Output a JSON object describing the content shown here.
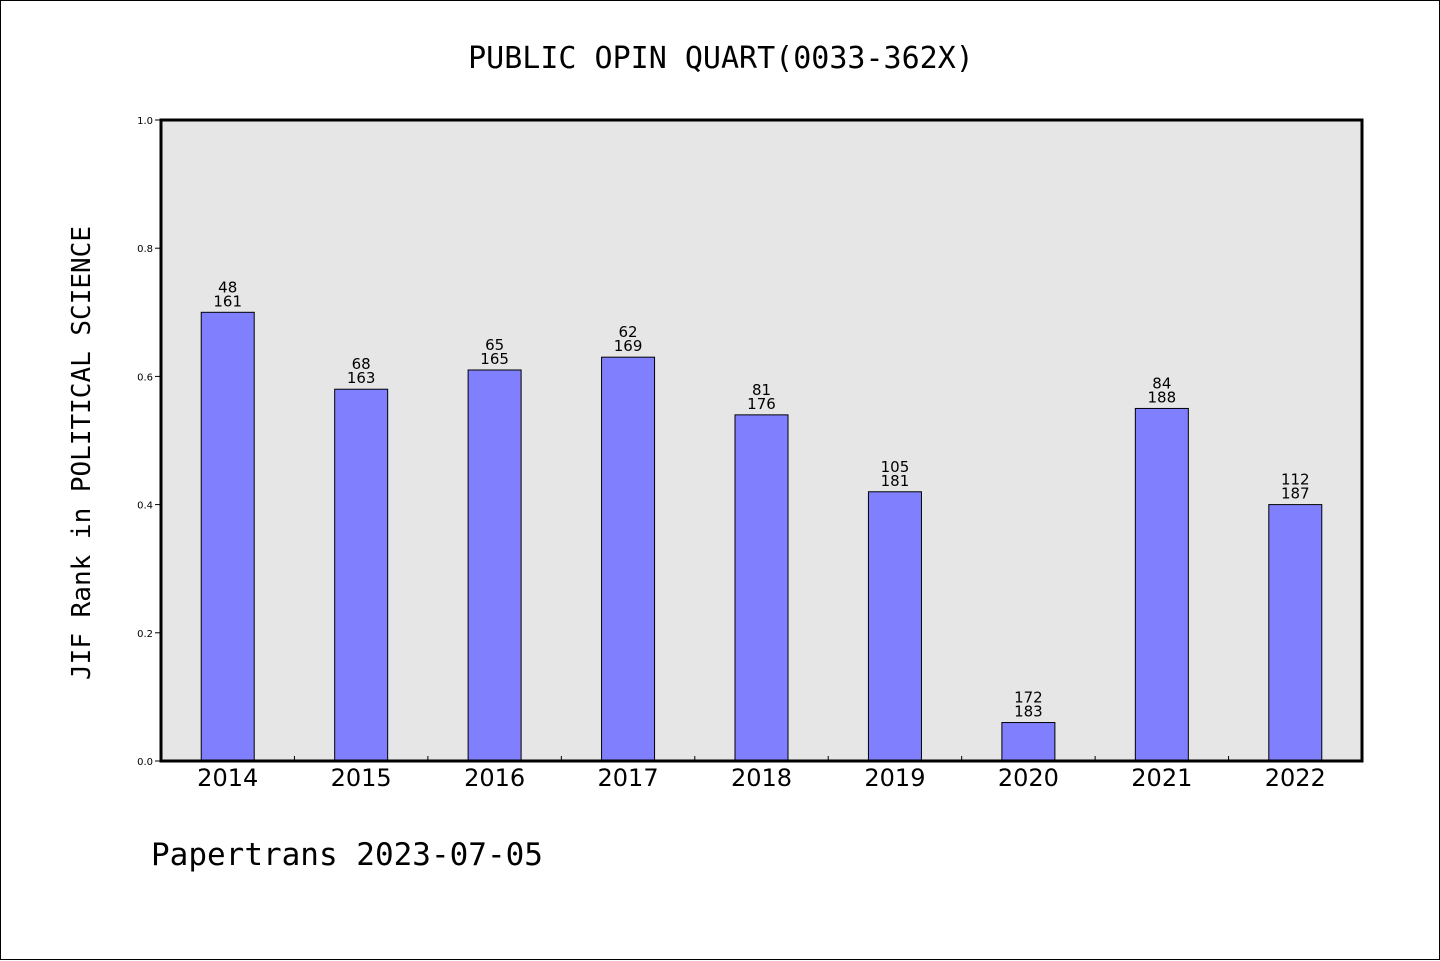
{
  "chart_data": {
    "type": "bar",
    "title": "PUBLIC OPIN QUART(0033-362X)",
    "xlabel": "",
    "ylabel": "JIF Rank in POLITICAL SCIENCE",
    "categories": [
      "2014",
      "2015",
      "2016",
      "2017",
      "2018",
      "2019",
      "2020",
      "2021",
      "2022"
    ],
    "values": [
      0.7,
      0.58,
      0.61,
      0.63,
      0.54,
      0.42,
      0.06,
      0.55,
      0.4
    ],
    "bar_labels": [
      {
        "rank": "48",
        "total": "161"
      },
      {
        "rank": "68",
        "total": "163"
      },
      {
        "rank": "65",
        "total": "165"
      },
      {
        "rank": "62",
        "total": "169"
      },
      {
        "rank": "81",
        "total": "176"
      },
      {
        "rank": "105",
        "total": "181"
      },
      {
        "rank": "172",
        "total": "183"
      },
      {
        "rank": "84",
        "total": "188"
      },
      {
        "rank": "112",
        "total": "187"
      }
    ],
    "ylim": [
      0,
      1.0
    ],
    "yticks": [
      "0.0",
      "0.2",
      "0.4",
      "0.6",
      "0.8",
      "1.0"
    ],
    "grid": false,
    "colors": {
      "bar": "#8080ff",
      "plot_background": "#e6e6e6"
    }
  },
  "footer": "Papertrans 2023-07-05"
}
